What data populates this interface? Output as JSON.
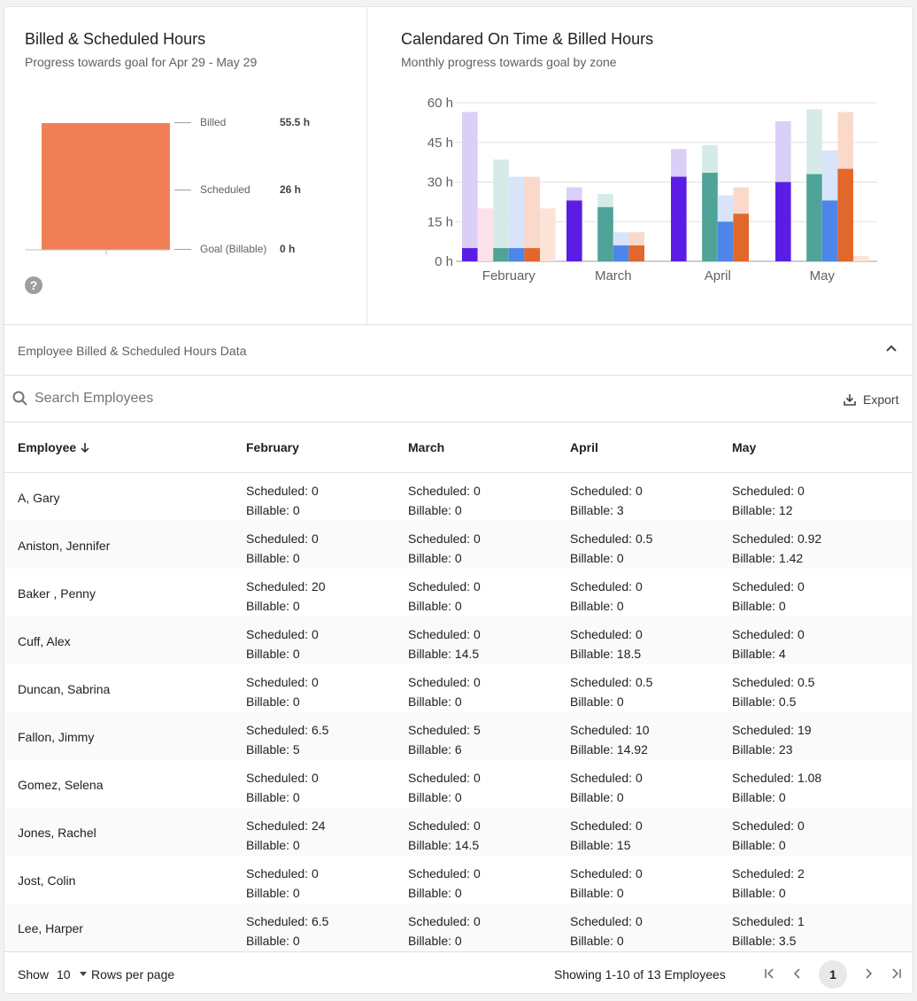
{
  "left_panel": {
    "title": "Billed & Scheduled Hours",
    "subtitle": "Progress towards goal for Apr 29 - May 29",
    "bar_color": "#f07f57",
    "legend": [
      {
        "label": "Billed",
        "value": "55.5 h"
      },
      {
        "label": "Scheduled",
        "value": "26 h"
      },
      {
        "label": "Goal (Billable)",
        "value": "0 h"
      }
    ]
  },
  "right_panel": {
    "title": "Calendared On Time & Billed Hours",
    "subtitle": "Monthly progress towards goal by zone"
  },
  "chart_data": {
    "type": "bar",
    "categories": [
      "February",
      "March",
      "April",
      "May"
    ],
    "y_ticks": [
      "0 h",
      "15 h",
      "30 h",
      "45 h",
      "60 h"
    ],
    "ylim": [
      0,
      60
    ],
    "grid": true,
    "legend": "none",
    "series": [
      {
        "color": "#5b1de6",
        "faded_color": "#d9cff7",
        "goal": [
          56.5,
          28,
          42.5,
          53
        ],
        "billed": [
          5,
          23,
          32,
          30
        ]
      },
      {
        "color": "#f3c2d6",
        "faded_color": "#fce0ea",
        "goal": [
          20,
          0,
          0,
          0
        ],
        "billed": [
          0,
          0,
          0,
          0
        ]
      },
      {
        "color": "#4fa397",
        "faded_color": "#d6ebe7",
        "goal": [
          38.5,
          25.5,
          44,
          57.5
        ],
        "billed": [
          5,
          20.5,
          33.5,
          33
        ]
      },
      {
        "color": "#4d86e8",
        "faded_color": "#d8e4fa",
        "goal": [
          32,
          11,
          25,
          42
        ],
        "billed": [
          5,
          6,
          15,
          23
        ]
      },
      {
        "color": "#e2672b",
        "faded_color": "#fad9cb",
        "goal": [
          32,
          11,
          28,
          56.5
        ],
        "billed": [
          5,
          6,
          18,
          35
        ]
      },
      {
        "color": "#fad9cb",
        "faded_color": "#fbe3d8",
        "goal": [
          20,
          0,
          0,
          2
        ],
        "billed": [
          0,
          0,
          0,
          0
        ]
      }
    ]
  },
  "section": {
    "title": "Employee Billed & Scheduled Hours Data"
  },
  "search": {
    "placeholder": "Search Employees",
    "export_label": "Export"
  },
  "table": {
    "headers": [
      "Employee",
      "February",
      "March",
      "April",
      "May"
    ],
    "rows": [
      {
        "name": "A, Gary",
        "cells": [
          [
            "Scheduled: 0",
            "Billable: 0"
          ],
          [
            "Scheduled: 0",
            "Billable: 0"
          ],
          [
            "Scheduled: 0",
            "Billable: 3"
          ],
          [
            "Scheduled: 0",
            "Billable: 12"
          ]
        ]
      },
      {
        "name": "Aniston, Jennifer",
        "cells": [
          [
            "Scheduled: 0",
            "Billable: 0"
          ],
          [
            "Scheduled: 0",
            "Billable: 0"
          ],
          [
            "Scheduled: 0.5",
            "Billable: 0"
          ],
          [
            "Scheduled: 0.92",
            "Billable: 1.42"
          ]
        ]
      },
      {
        "name": "Baker , Penny",
        "cells": [
          [
            "Scheduled: 20",
            "Billable: 0"
          ],
          [
            "Scheduled: 0",
            "Billable: 0"
          ],
          [
            "Scheduled: 0",
            "Billable: 0"
          ],
          [
            "Scheduled: 0",
            "Billable: 0"
          ]
        ]
      },
      {
        "name": "Cuff, Alex",
        "cells": [
          [
            "Scheduled: 0",
            "Billable: 0"
          ],
          [
            "Scheduled: 0",
            "Billable: 14.5"
          ],
          [
            "Scheduled: 0",
            "Billable: 18.5"
          ],
          [
            "Scheduled: 0",
            "Billable: 4"
          ]
        ]
      },
      {
        "name": "Duncan, Sabrina",
        "cells": [
          [
            "Scheduled: 0",
            "Billable: 0"
          ],
          [
            "Scheduled: 0",
            "Billable: 0"
          ],
          [
            "Scheduled: 0.5",
            "Billable: 0"
          ],
          [
            "Scheduled: 0.5",
            "Billable: 0.5"
          ]
        ]
      },
      {
        "name": "Fallon, Jimmy",
        "cells": [
          [
            "Scheduled: 6.5",
            "Billable: 5"
          ],
          [
            "Scheduled: 5",
            "Billable: 6"
          ],
          [
            "Scheduled: 10",
            "Billable: 14.92"
          ],
          [
            "Scheduled: 19",
            "Billable: 23"
          ]
        ]
      },
      {
        "name": "Gomez, Selena",
        "cells": [
          [
            "Scheduled: 0",
            "Billable: 0"
          ],
          [
            "Scheduled: 0",
            "Billable: 0"
          ],
          [
            "Scheduled: 0",
            "Billable: 0"
          ],
          [
            "Scheduled: 1.08",
            "Billable: 0"
          ]
        ]
      },
      {
        "name": "Jones, Rachel",
        "cells": [
          [
            "Scheduled: 24",
            "Billable: 0"
          ],
          [
            "Scheduled: 0",
            "Billable: 14.5"
          ],
          [
            "Scheduled: 0",
            "Billable: 15"
          ],
          [
            "Scheduled: 0",
            "Billable: 0"
          ]
        ]
      },
      {
        "name": "Jost, Colin",
        "cells": [
          [
            "Scheduled: 0",
            "Billable: 0"
          ],
          [
            "Scheduled: 0",
            "Billable: 0"
          ],
          [
            "Scheduled: 0",
            "Billable: 0"
          ],
          [
            "Scheduled: 2",
            "Billable: 0"
          ]
        ]
      },
      {
        "name": "Lee, Harper",
        "cells": [
          [
            "Scheduled: 6.5",
            "Billable: 0"
          ],
          [
            "Scheduled: 0",
            "Billable: 0"
          ],
          [
            "Scheduled: 0",
            "Billable: 0"
          ],
          [
            "Scheduled: 1",
            "Billable: 3.5"
          ]
        ]
      }
    ]
  },
  "footer": {
    "show_label": "Show",
    "rows_value": "10",
    "rows_label": "Rows per page",
    "showing": "Showing 1-10 of 13 Employees",
    "current_page": "1"
  }
}
